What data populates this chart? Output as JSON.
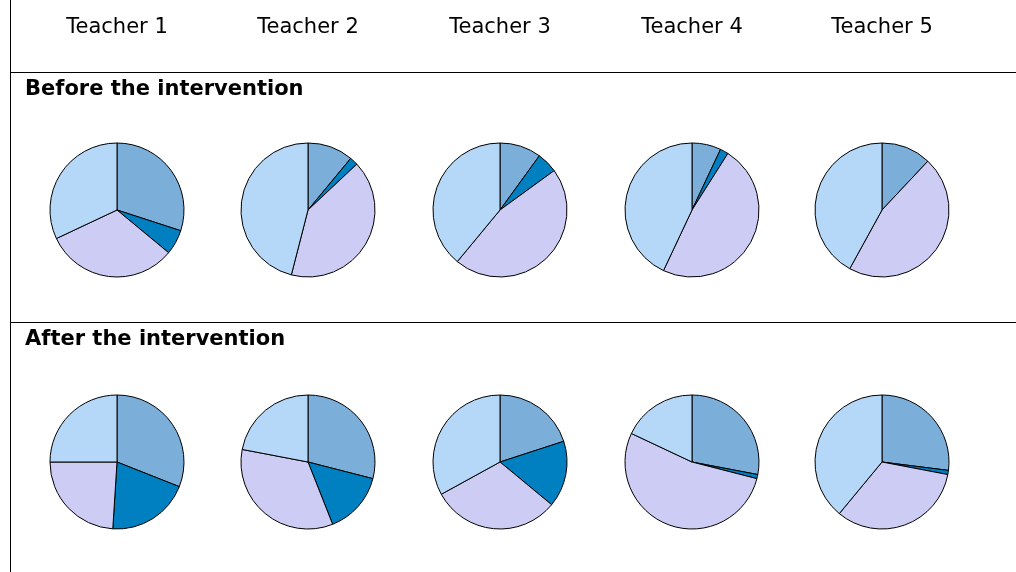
{
  "chart_data": [
    {
      "type": "pie",
      "title": "Teacher 1",
      "annotations": [
        "Before the intervention"
      ],
      "values": [
        30,
        6,
        32,
        32
      ],
      "colors": [
        "#7bafd9",
        "#0080c0",
        "#ccccf5",
        "#b5d8f8"
      ]
    },
    {
      "type": "pie",
      "title": "Teacher 2",
      "values": [
        11,
        2,
        41,
        46
      ],
      "colors": [
        "#7bafd9",
        "#0080c0",
        "#ccccf5",
        "#b5d8f8"
      ]
    },
    {
      "type": "pie",
      "title": "Teacher 3",
      "values": [
        10,
        5,
        46,
        39
      ],
      "colors": [
        "#7bafd9",
        "#0080c0",
        "#ccccf5",
        "#b5d8f8"
      ]
    },
    {
      "type": "pie",
      "title": "Teacher 4",
      "values": [
        7,
        2,
        48,
        43
      ],
      "colors": [
        "#7bafd9",
        "#0080c0",
        "#ccccf5",
        "#b5d8f8"
      ]
    },
    {
      "type": "pie",
      "title": "Teacher 5",
      "values": [
        12,
        46,
        42
      ],
      "colors": [
        "#7bafd9",
        "#ccccf5",
        "#b5d8f8"
      ]
    },
    {
      "type": "pie",
      "annotations": [
        "After the intervention"
      ],
      "values": [
        31,
        20,
        24,
        25
      ],
      "colors": [
        "#7bafd9",
        "#0080c0",
        "#ccccf5",
        "#b5d8f8"
      ]
    },
    {
      "type": "pie",
      "values": [
        29,
        15,
        34,
        22
      ],
      "colors": [
        "#7bafd9",
        "#0080c0",
        "#ccccf5",
        "#b5d8f8"
      ]
    },
    {
      "type": "pie",
      "values": [
        20,
        16,
        31,
        33
      ],
      "colors": [
        "#7bafd9",
        "#0080c0",
        "#ccccf5",
        "#b5d8f8"
      ]
    },
    {
      "type": "pie",
      "values": [
        28,
        1,
        53,
        18
      ],
      "colors": [
        "#7bafd9",
        "#0080c0",
        "#ccccf5",
        "#b5d8f8"
      ]
    },
    {
      "type": "pie",
      "values": [
        27,
        1,
        33,
        39
      ],
      "colors": [
        "#7bafd9",
        "#0080c0",
        "#ccccf5",
        "#b5d8f8"
      ]
    }
  ]
}
